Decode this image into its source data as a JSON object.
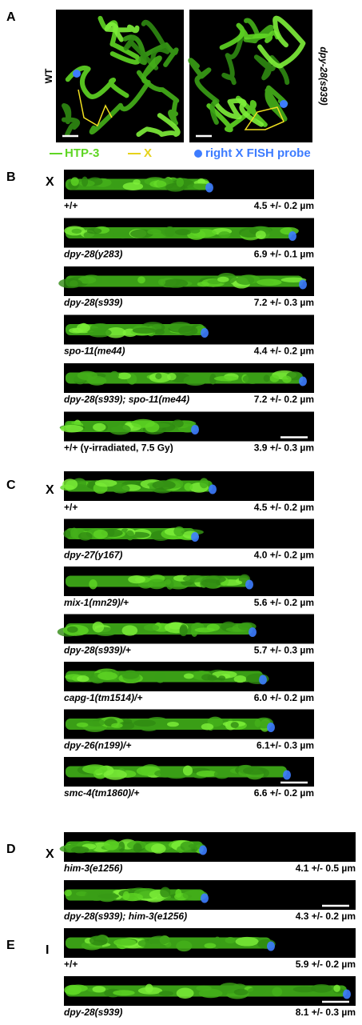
{
  "panels": [
    {
      "label": "A",
      "images": [
        {
          "genotype": "WT"
        },
        {
          "genotype": "dpy-28(s939)"
        }
      ],
      "legend": [
        "HTP-3",
        "X",
        "right X FISH probe"
      ]
    },
    {
      "label": "B",
      "chromosome": "X",
      "strips": [
        {
          "genotype": "+/+",
          "length": "4.5 +/- 0.2 µm"
        },
        {
          "genotype": "dpy-28(y283)",
          "length": "6.9 +/- 0.1 µm"
        },
        {
          "genotype": "dpy-28(s939)",
          "length": "7.2 +/- 0.3 µm"
        },
        {
          "genotype": "spo-11(me44)",
          "length": "4.4 +/- 0.2 µm"
        },
        {
          "genotype": "dpy-28(s939); spo-11(me44)",
          "length": "7.2 +/- 0.2 µm"
        },
        {
          "genotype": "+/+ (γ-irradiated, 7.5 Gy)",
          "length": "3.9 +/- 0.3 µm"
        }
      ]
    },
    {
      "label": "C",
      "chromosome": "X",
      "strips": [
        {
          "genotype": "+/+",
          "length": "4.5 +/- 0.2 µm"
        },
        {
          "genotype": "dpy-27(y167)",
          "length": "4.0 +/- 0.2 µm"
        },
        {
          "genotype": "mix-1(mn29)/+",
          "length": "5.6 +/- 0.2 µm"
        },
        {
          "genotype": "dpy-28(s939)/+",
          "length": "5.7 +/- 0.3 µm"
        },
        {
          "genotype": "capg-1(tm1514)/+",
          "length": "6.0 +/- 0.2 µm"
        },
        {
          "genotype": "dpy-26(n199)/+",
          "length": "6.1+/- 0.3 µm"
        },
        {
          "genotype": "smc-4(tm1860)/+",
          "length": "6.6 +/- 0.2 µm"
        }
      ]
    },
    {
      "label": "D",
      "chromosome": "X",
      "strips": [
        {
          "genotype": "him-3(e1256)",
          "length": "4.1 +/- 0.5 µm"
        },
        {
          "genotype": "dpy-28(s939); him-3(e1256)",
          "length": "4.3 +/- 0.2 µm"
        }
      ]
    },
    {
      "label": "E",
      "chromosome": "I",
      "strips": [
        {
          "genotype": "+/+",
          "length": "5.9 +/- 0.2 µm"
        },
        {
          "genotype": "dpy-28(s939)",
          "length": "8.1 +/- 0.3 µm"
        }
      ]
    }
  ]
}
